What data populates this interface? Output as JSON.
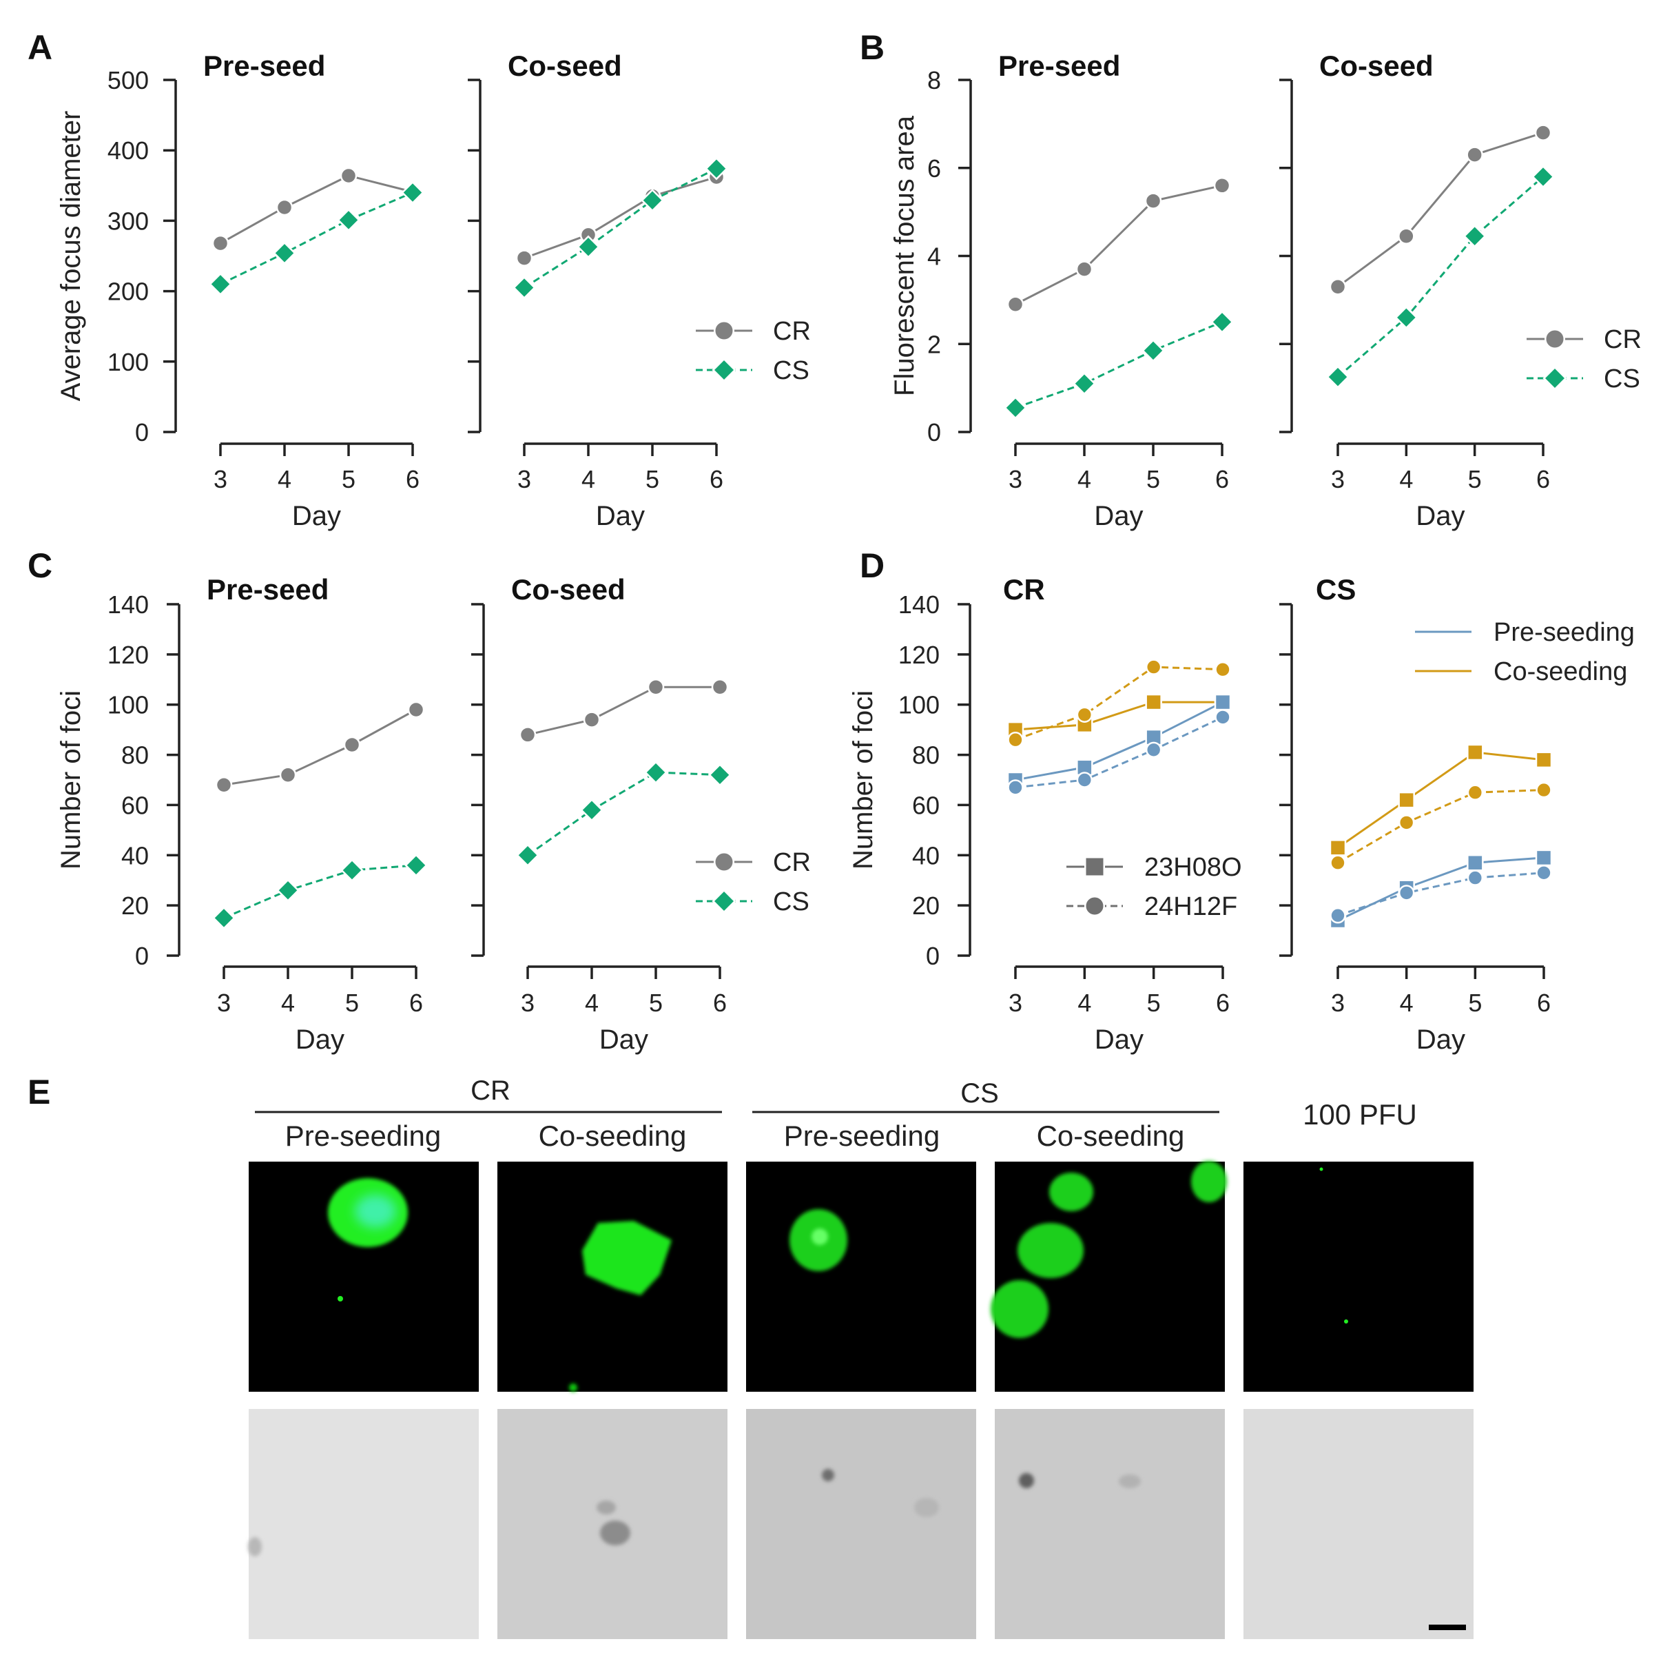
{
  "figure": {
    "panel_letters": [
      "A",
      "B",
      "C",
      "D",
      "E"
    ],
    "colors": {
      "gray": "#808080",
      "green": "#11a873",
      "blue": "#6b98c0",
      "gold": "#d29a16",
      "axis": "#222222",
      "text": "#222222"
    }
  },
  "chart_data": [
    {
      "panel": "A",
      "type": "line",
      "ylabel": "Average focus diameter",
      "ylim": [
        0,
        500
      ],
      "yticks": [
        0,
        100,
        200,
        300,
        400,
        500
      ],
      "legend": {
        "placement": "bottom-right of Co-seed subplot",
        "entries": [
          "CR",
          "CS"
        ]
      },
      "subplots": [
        {
          "title": "Pre-seed",
          "xlabel": "Day",
          "x": [
            3,
            4,
            5,
            6
          ],
          "series": [
            {
              "name": "CR",
              "values": [
                268,
                319,
                364,
                341
              ],
              "color": "#808080",
              "marker": "circle",
              "dash": "solid"
            },
            {
              "name": "CS",
              "values": [
                210,
                254,
                301,
                340
              ],
              "color": "#11a873",
              "marker": "diamond",
              "dash": "dashed"
            }
          ]
        },
        {
          "title": "Co-seed",
          "xlabel": "Day",
          "x": [
            3,
            4,
            5,
            6
          ],
          "series": [
            {
              "name": "CR",
              "values": [
                247,
                280,
                335,
                362
              ],
              "color": "#808080",
              "marker": "circle",
              "dash": "solid"
            },
            {
              "name": "CS",
              "values": [
                205,
                263,
                329,
                374
              ],
              "color": "#11a873",
              "marker": "diamond",
              "dash": "dashed"
            }
          ]
        }
      ]
    },
    {
      "panel": "B",
      "type": "line",
      "ylabel": "Fluorescent focus area",
      "ylim": [
        0,
        8
      ],
      "yticks": [
        0,
        2,
        4,
        6,
        8
      ],
      "legend": {
        "placement": "bottom-right of Co-seed subplot",
        "entries": [
          "CR",
          "CS"
        ]
      },
      "subplots": [
        {
          "title": "Pre-seed",
          "xlabel": "Day",
          "x": [
            3,
            4,
            5,
            6
          ],
          "series": [
            {
              "name": "CR",
              "values": [
                2.9,
                3.7,
                5.25,
                5.6
              ],
              "color": "#808080",
              "marker": "circle",
              "dash": "solid"
            },
            {
              "name": "CS",
              "values": [
                0.55,
                1.1,
                1.85,
                2.5
              ],
              "color": "#11a873",
              "marker": "diamond",
              "dash": "dashed"
            }
          ]
        },
        {
          "title": "Co-seed",
          "xlabel": "Day",
          "x": [
            3,
            4,
            5,
            6
          ],
          "series": [
            {
              "name": "CR",
              "values": [
                3.3,
                4.45,
                6.3,
                6.8
              ],
              "color": "#808080",
              "marker": "circle",
              "dash": "solid"
            },
            {
              "name": "CS",
              "values": [
                1.25,
                2.6,
                4.45,
                5.8
              ],
              "color": "#11a873",
              "marker": "diamond",
              "dash": "dashed"
            }
          ]
        }
      ]
    },
    {
      "panel": "C",
      "type": "line",
      "ylabel": "Number of foci",
      "ylim": [
        0,
        140
      ],
      "yticks": [
        0,
        20,
        40,
        60,
        80,
        100,
        120,
        140
      ],
      "legend": {
        "placement": "bottom-right of Co-seed subplot",
        "entries": [
          "CR",
          "CS"
        ]
      },
      "subplots": [
        {
          "title": "Pre-seed",
          "xlabel": "Day",
          "x": [
            3,
            4,
            5,
            6
          ],
          "series": [
            {
              "name": "CR",
              "values": [
                68,
                72,
                84,
                98
              ],
              "color": "#808080",
              "marker": "circle",
              "dash": "solid"
            },
            {
              "name": "CS",
              "values": [
                15,
                26,
                34,
                36
              ],
              "color": "#11a873",
              "marker": "diamond",
              "dash": "dashed"
            }
          ]
        },
        {
          "title": "Co-seed",
          "xlabel": "Day",
          "x": [
            3,
            4,
            5,
            6
          ],
          "series": [
            {
              "name": "CR",
              "values": [
                88,
                94,
                107,
                107
              ],
              "color": "#808080",
              "marker": "circle",
              "dash": "solid"
            },
            {
              "name": "CS",
              "values": [
                40,
                58,
                73,
                72
              ],
              "color": "#11a873",
              "marker": "diamond",
              "dash": "dashed"
            }
          ]
        }
      ]
    },
    {
      "panel": "D",
      "type": "line",
      "ylabel": "Number of foci",
      "ylim": [
        0,
        140
      ],
      "yticks": [
        0,
        20,
        40,
        60,
        80,
        100,
        120,
        140
      ],
      "color_legend": {
        "placement": "top-right",
        "entries": [
          {
            "label": "Pre-seeding",
            "color": "#6b98c0"
          },
          {
            "label": "Co-seeding",
            "color": "#d29a16"
          }
        ]
      },
      "marker_legend": {
        "placement": "bottom-right of CR subplot",
        "entries": [
          {
            "label": "23H08O",
            "marker": "square",
            "dash": "solid"
          },
          {
            "label": "24H12F",
            "marker": "circle",
            "dash": "dashed"
          }
        ]
      },
      "subplots": [
        {
          "title": "CR",
          "xlabel": "Day",
          "x": [
            3,
            4,
            5,
            6
          ],
          "series": [
            {
              "name": "Co-seeding 23H08O",
              "values": [
                90,
                92,
                101,
                101
              ],
              "color": "#d29a16",
              "marker": "square",
              "dash": "solid"
            },
            {
              "name": "Co-seeding 24H12F",
              "values": [
                86,
                96,
                115,
                114
              ],
              "color": "#d29a16",
              "marker": "circle",
              "dash": "dashed"
            },
            {
              "name": "Pre-seeding 23H08O",
              "values": [
                70,
                75,
                87,
                101
              ],
              "color": "#6b98c0",
              "marker": "square",
              "dash": "solid"
            },
            {
              "name": "Pre-seeding 24H12F",
              "values": [
                67,
                70,
                82,
                95
              ],
              "color": "#6b98c0",
              "marker": "circle",
              "dash": "dashed"
            }
          ]
        },
        {
          "title": "CS",
          "xlabel": "Day",
          "x": [
            3,
            4,
            5,
            6
          ],
          "series": [
            {
              "name": "Co-seeding 23H08O",
              "values": [
                43,
                62,
                81,
                78
              ],
              "color": "#d29a16",
              "marker": "square",
              "dash": "solid"
            },
            {
              "name": "Co-seeding 24H12F",
              "values": [
                37,
                53,
                65,
                66
              ],
              "color": "#d29a16",
              "marker": "circle",
              "dash": "dashed"
            },
            {
              "name": "Pre-seeding 23H08O",
              "values": [
                14,
                27,
                37,
                39
              ],
              "color": "#6b98c0",
              "marker": "square",
              "dash": "solid"
            },
            {
              "name": "Pre-seeding 24H12F",
              "values": [
                16,
                25,
                31,
                33
              ],
              "color": "#6b98c0",
              "marker": "circle",
              "dash": "dashed"
            }
          ]
        }
      ]
    }
  ],
  "panel_e": {
    "letter": "E",
    "group_labels": [
      "CR",
      "CS"
    ],
    "column_labels": [
      "Pre-seeding",
      "Co-seeding",
      "Pre-seeding",
      "Co-seeding",
      "100 PFU"
    ],
    "rows": [
      "fluorescence",
      "brightfield"
    ]
  }
}
